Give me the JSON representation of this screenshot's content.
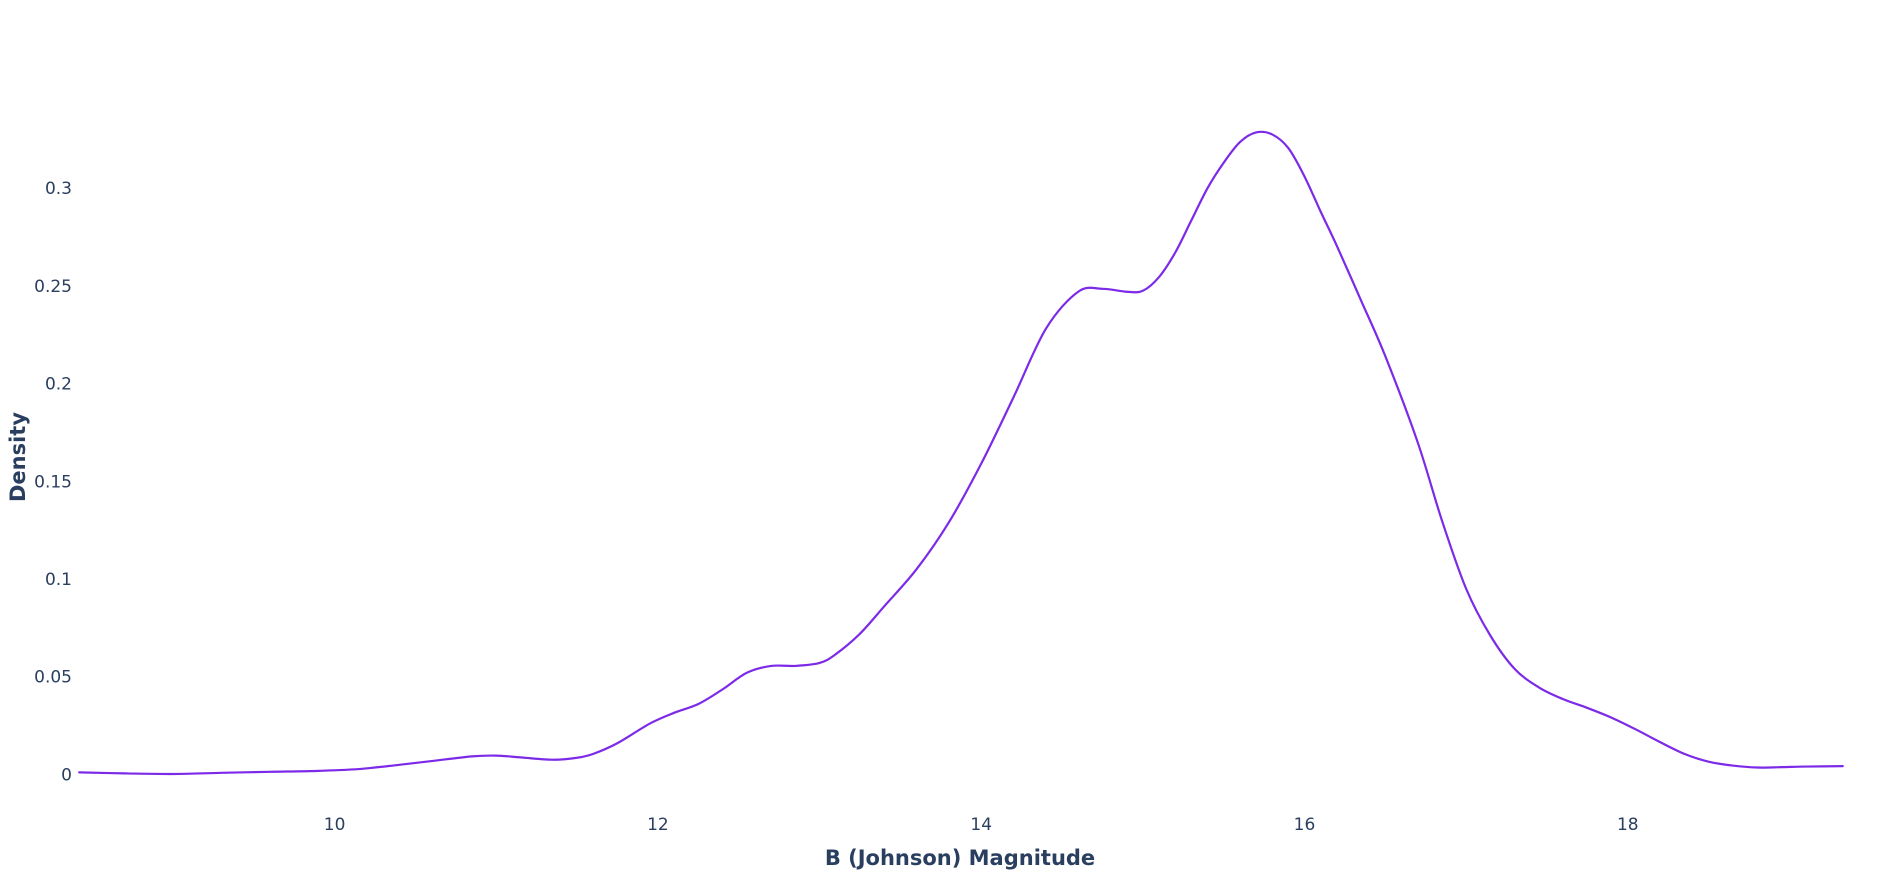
{
  "chart_data": {
    "type": "line",
    "title": "",
    "xlabel": "B (Johnson) Magnitude",
    "ylabel": "Density",
    "xlim": [
      8.4,
      19.35
    ],
    "ylim": [
      -0.008,
      0.34
    ],
    "grid": false,
    "legend": "none",
    "x_ticks": [
      10,
      12,
      14,
      16,
      18
    ],
    "x_tick_labels": [
      "10",
      "12",
      "14",
      "16",
      "18"
    ],
    "y_ticks": [
      0,
      0.05,
      0.1,
      0.15,
      0.2,
      0.25,
      0.3
    ],
    "y_tick_labels": [
      "0",
      "0.05",
      "0.1",
      "0.15",
      "0.2",
      "0.25",
      "0.3"
    ],
    "series": [
      {
        "color": "#7c2ae8",
        "x": [
          8.42,
          8.7,
          9.0,
          9.3,
          9.6,
          9.9,
          10.15,
          10.4,
          10.6,
          10.85,
          11.0,
          11.15,
          11.35,
          11.5,
          11.6,
          11.75,
          11.95,
          12.1,
          12.25,
          12.4,
          12.55,
          12.7,
          12.85,
          13.0,
          13.1,
          13.25,
          13.4,
          13.6,
          13.8,
          14.0,
          14.2,
          14.4,
          14.6,
          14.75,
          14.9,
          15.0,
          15.1,
          15.2,
          15.3,
          15.4,
          15.5,
          15.6,
          15.7,
          15.8,
          15.9,
          16.0,
          16.1,
          16.2,
          16.35,
          16.5,
          16.7,
          16.85,
          17.0,
          17.15,
          17.3,
          17.45,
          17.6,
          17.75,
          17.9,
          18.05,
          18.2,
          18.35,
          18.5,
          18.65,
          18.8,
          18.95,
          19.1,
          19.33
        ],
        "y": [
          0.001,
          0.0005,
          0.0002,
          0.0008,
          0.0013,
          0.0018,
          0.0027,
          0.0049,
          0.0068,
          0.0092,
          0.0096,
          0.0087,
          0.0075,
          0.0085,
          0.0105,
          0.016,
          0.026,
          0.0315,
          0.036,
          0.0435,
          0.052,
          0.0555,
          0.0555,
          0.057,
          0.0615,
          0.072,
          0.086,
          0.105,
          0.129,
          0.159,
          0.193,
          0.228,
          0.247,
          0.2485,
          0.247,
          0.2475,
          0.2545,
          0.267,
          0.2835,
          0.3,
          0.313,
          0.3235,
          0.3285,
          0.3275,
          0.3205,
          0.306,
          0.288,
          0.2705,
          0.2425,
          0.214,
          0.17,
          0.13,
          0.095,
          0.071,
          0.054,
          0.0445,
          0.0385,
          0.034,
          0.029,
          0.023,
          0.0165,
          0.0105,
          0.0065,
          0.0045,
          0.0035,
          0.0037,
          0.004,
          0.0042
        ]
      }
    ]
  }
}
